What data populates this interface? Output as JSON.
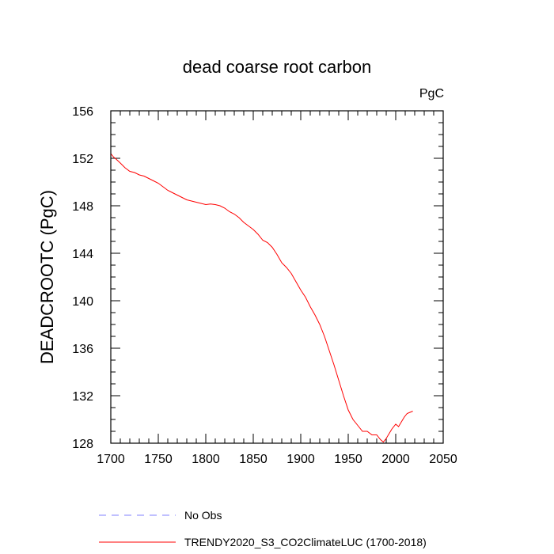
{
  "chart_data": {
    "type": "line",
    "title": "dead coarse root carbon",
    "units": "PgC",
    "xlabel": "",
    "ylabel": "DEADCROOTC  (PgC)",
    "xlim": [
      1700,
      2050
    ],
    "ylim": [
      128,
      156
    ],
    "x_ticks": [
      1700,
      1750,
      1800,
      1850,
      1900,
      1950,
      2000,
      2050
    ],
    "y_ticks": [
      128,
      132,
      136,
      140,
      144,
      148,
      152,
      156
    ],
    "grid": false,
    "legend_position": "bottom",
    "series": [
      {
        "name": "No Obs",
        "style": "dashed",
        "color": "#8080ff",
        "x": [],
        "y": []
      },
      {
        "name": "TRENDY2020_S3_CO2ClimateLUC (1700-2018)",
        "style": "solid",
        "color": "#ff0000",
        "x": [
          1700,
          1703,
          1706,
          1710,
          1715,
          1720,
          1725,
          1730,
          1735,
          1740,
          1745,
          1750,
          1755,
          1760,
          1765,
          1770,
          1775,
          1780,
          1785,
          1790,
          1795,
          1800,
          1805,
          1810,
          1815,
          1820,
          1825,
          1830,
          1835,
          1840,
          1845,
          1850,
          1855,
          1860,
          1865,
          1870,
          1875,
          1880,
          1885,
          1890,
          1895,
          1900,
          1905,
          1910,
          1915,
          1920,
          1925,
          1930,
          1935,
          1940,
          1945,
          1950,
          1955,
          1960,
          1965,
          1970,
          1975,
          1980,
          1984,
          1987,
          1990,
          1993,
          1996,
          2000,
          2003,
          2006,
          2009,
          2012,
          2015,
          2018
        ],
        "y": [
          152.4,
          152.1,
          151.9,
          151.6,
          151.2,
          150.9,
          150.8,
          150.6,
          150.5,
          150.3,
          150.1,
          149.9,
          149.6,
          149.3,
          149.1,
          148.9,
          148.7,
          148.5,
          148.4,
          148.3,
          148.2,
          148.1,
          148.15,
          148.1,
          148.0,
          147.8,
          147.5,
          147.3,
          147.0,
          146.6,
          146.3,
          146.0,
          145.6,
          145.1,
          144.9,
          144.5,
          143.9,
          143.2,
          142.8,
          142.3,
          141.6,
          140.9,
          140.3,
          139.5,
          138.8,
          138.0,
          137.0,
          135.8,
          134.6,
          133.3,
          132.0,
          130.8,
          130.0,
          129.5,
          129.0,
          129.0,
          128.7,
          128.7,
          128.3,
          128.1,
          128.4,
          128.8,
          129.2,
          129.6,
          129.4,
          129.8,
          130.2,
          130.5,
          130.6,
          130.7
        ]
      }
    ]
  },
  "legend": {
    "items": [
      {
        "label": "No Obs",
        "color": "#8080ff",
        "dash": "dashed"
      },
      {
        "label": "TRENDY2020_S3_CO2ClimateLUC (1700-2018)",
        "color": "#ff0000",
        "dash": "solid"
      }
    ]
  }
}
